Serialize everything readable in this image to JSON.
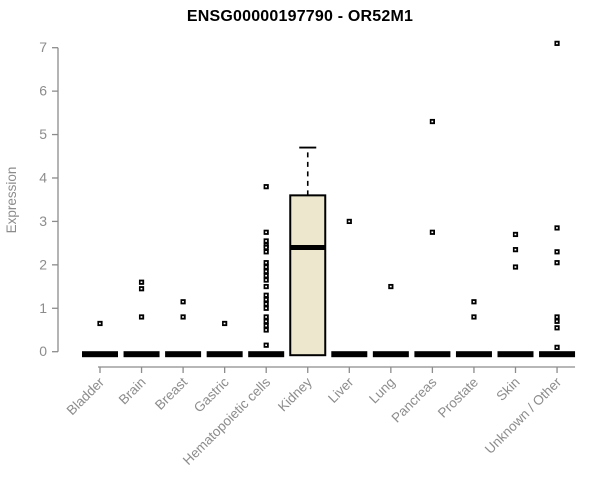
{
  "chart_data": {
    "type": "boxplot",
    "title": "ENSG00000197790 - OR52M1",
    "xlabel": "",
    "ylabel": "Expression",
    "ylim": [
      0,
      7
    ],
    "yticks": [
      0,
      1,
      2,
      3,
      4,
      5,
      6,
      7
    ],
    "grid": false,
    "legend": "none",
    "marker": "open-square",
    "colors": {
      "axis": "#8c8c8c",
      "tick_text": "#8c8c8c",
      "axis_label_text": "#8c8c8c",
      "title_text": "#000000",
      "box_fill": "#ece7cd",
      "box_stroke": "#000000",
      "collapsed_box": "#000000",
      "outlier": "#000000",
      "background": "#ffffff"
    },
    "categories": [
      "Bladder",
      "Brain",
      "Breast",
      "Gastric",
      "Hematopoietic cells",
      "Kidney",
      "Liver",
      "Lung",
      "Pancreas",
      "Prostate",
      "Skin",
      "Unknown / Other"
    ],
    "boxes": [
      {
        "category": "Bladder",
        "q1": 0,
        "median": 0,
        "q3": 0,
        "whisker_low": 0,
        "whisker_high": 0,
        "collapsed": true,
        "outliers": [
          0.65
        ]
      },
      {
        "category": "Brain",
        "q1": 0,
        "median": 0,
        "q3": 0,
        "whisker_low": 0,
        "whisker_high": 0,
        "collapsed": true,
        "outliers": [
          1.6,
          1.45,
          0.8
        ]
      },
      {
        "category": "Breast",
        "q1": 0,
        "median": 0,
        "q3": 0,
        "whisker_low": 0,
        "whisker_high": 0,
        "collapsed": true,
        "outliers": [
          1.15,
          0.8
        ]
      },
      {
        "category": "Gastric",
        "q1": 0,
        "median": 0,
        "q3": 0,
        "whisker_low": 0,
        "whisker_high": 0,
        "collapsed": true,
        "outliers": [
          0.65
        ]
      },
      {
        "category": "Hematopoietic cells",
        "q1": 0,
        "median": 0,
        "q3": 0,
        "whisker_low": 0,
        "whisker_high": 0,
        "collapsed": true,
        "outliers": [
          3.8,
          2.75,
          2.55,
          2.45,
          2.4,
          2.3,
          2.05,
          1.95,
          1.85,
          1.75,
          1.65,
          1.5,
          1.3,
          1.2,
          1.1,
          1.0,
          0.8,
          0.7,
          0.6,
          0.5,
          0.15
        ]
      },
      {
        "category": "Kidney",
        "q1": 0,
        "median": 2.4,
        "q3": 3.6,
        "whisker_low": 0,
        "whisker_high": 4.7,
        "collapsed": false,
        "outliers": []
      },
      {
        "category": "Liver",
        "q1": 0,
        "median": 0,
        "q3": 0,
        "whisker_low": 0,
        "whisker_high": 0,
        "collapsed": true,
        "outliers": [
          3.0
        ]
      },
      {
        "category": "Lung",
        "q1": 0,
        "median": 0,
        "q3": 0,
        "whisker_low": 0,
        "whisker_high": 0,
        "collapsed": true,
        "outliers": [
          1.5
        ]
      },
      {
        "category": "Pancreas",
        "q1": 0,
        "median": 0,
        "q3": 0,
        "whisker_low": 0,
        "whisker_high": 0,
        "collapsed": true,
        "outliers": [
          5.3,
          2.75
        ]
      },
      {
        "category": "Prostate",
        "q1": 0,
        "median": 0,
        "q3": 0,
        "whisker_low": 0,
        "whisker_high": 0,
        "collapsed": true,
        "outliers": [
          1.15,
          0.8
        ]
      },
      {
        "category": "Skin",
        "q1": 0,
        "median": 0,
        "q3": 0,
        "whisker_low": 0,
        "whisker_high": 0,
        "collapsed": true,
        "outliers": [
          2.7,
          2.35,
          1.95
        ]
      },
      {
        "category": "Unknown / Other",
        "q1": 0,
        "median": 0,
        "q3": 0,
        "whisker_low": 0,
        "whisker_high": 0,
        "collapsed": true,
        "outliers": [
          7.1,
          2.85,
          2.3,
          2.05,
          0.8,
          0.7,
          0.55,
          0.1
        ]
      }
    ]
  }
}
